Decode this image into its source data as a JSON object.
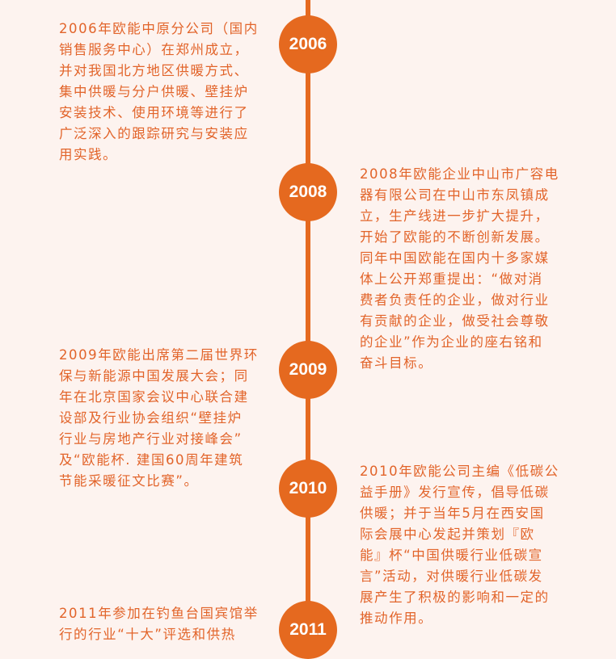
{
  "colors": {
    "accent": "#e5691f",
    "text": "#e2642a",
    "background": "#fdf3ef"
  },
  "timeline": [
    {
      "year": "2006",
      "lines": [
        "2006年欧能中原分公司（国内",
        "销售服务中心）在郑州成立，",
        "并对我国北方地区供暖方式、",
        "集中供暖与分户供暖、壁挂炉",
        "安装技术、使用环境等进行了",
        "广泛深入的跟踪研究与安装应",
        "用实践。"
      ]
    },
    {
      "year": "2008",
      "lines": [
        "2008年欧能企业中山市广容电",
        "器有限公司在中山市东凤镇成",
        "立，生产线进一步扩大提升，",
        "开始了欧能的不断创新发展。",
        "同年中国欧能在国内十多家媒",
        "体上公开郑重提出：“做对消",
        "费者负责任的企业，做对行业",
        "有贡献的企业，做受社会尊敬",
        "的企业”作为企业的座右铭和",
        "奋斗目标。"
      ]
    },
    {
      "year": "2009",
      "lines": [
        "2009年欧能出席第二届世界环",
        "保与新能源中国发展大会；同",
        "年在北京国家会议中心联合建",
        "设部及行业协会组织“壁挂炉",
        "行业与房地产行业对接峰会”",
        "及“欧能杯. 建国60周年建筑",
        "节能采暖征文比赛”。"
      ]
    },
    {
      "year": "2010",
      "lines": [
        "2010年欧能公司主编《低碳公",
        "益手册》发行宣传，倡导低碳",
        "供暖；并于当年5月在西安国",
        "际会展中心发起并策划『欧",
        "能』杯“中国供暖行业低碳宣",
        "言”活动，对供暖行业低碳发",
        "展产生了积极的影响和一定的",
        "推动作用。"
      ]
    },
    {
      "year": "2011",
      "lines": [
        "2011年参加在钓鱼台国宾馆举",
        "行的行业“十大”评选和供热"
      ]
    }
  ]
}
